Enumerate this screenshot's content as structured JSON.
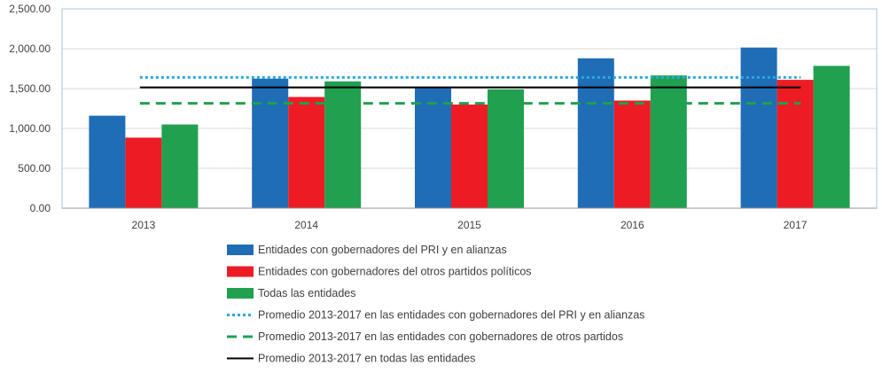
{
  "chart_data": {
    "type": "bar",
    "categories": [
      "2013",
      "2014",
      "2015",
      "2016",
      "2017"
    ],
    "series": [
      {
        "name": "Entidades con gobernadores del PRI y en alianzas",
        "values": [
          1160,
          1625,
          1510,
          1880,
          2015
        ],
        "color": "#1f6db5"
      },
      {
        "name": "Entidades con gobernadores del otros partidos políticos",
        "values": [
          885,
          1395,
          1300,
          1350,
          1610
        ],
        "color": "#ed1c24"
      },
      {
        "name": "Todas las entidades",
        "values": [
          1050,
          1590,
          1490,
          1665,
          1785
        ],
        "color": "#21a050"
      }
    ],
    "lines": [
      {
        "name": "Promedio 2013-2017 en las entidades con gobernadores del PRI y en alianzas",
        "value": 1640,
        "color": "#29a9e0",
        "style": "dotted"
      },
      {
        "name": "Promedio 2013-2017 en las entidades con gobernadores de otros partidos",
        "value": 1315,
        "color": "#21a050",
        "style": "dashed"
      },
      {
        "name": "Promedio 2013-2017 en todas las entidades",
        "value": 1515,
        "color": "#000000",
        "style": "solid"
      }
    ],
    "ylim": [
      0,
      2500
    ],
    "yticks": [
      "0.00",
      "500.00",
      "1,000.00",
      "1,500.00",
      "2,000.00",
      "2,500.00"
    ],
    "grid": true,
    "legend": "bottom"
  }
}
